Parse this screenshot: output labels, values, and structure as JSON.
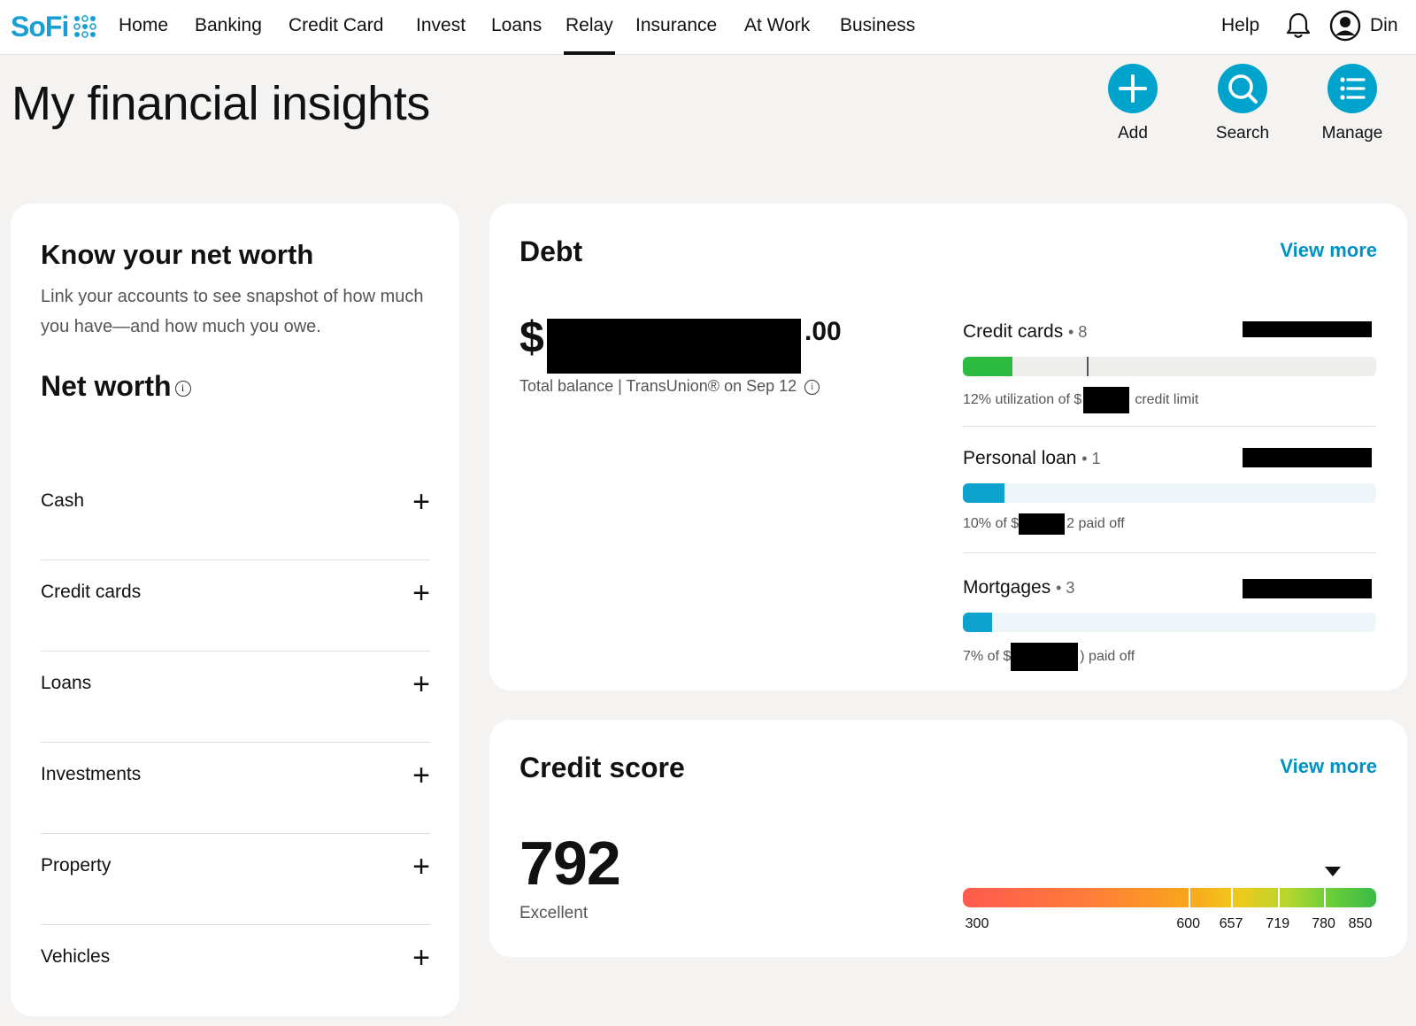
{
  "brand": {
    "name": "SoFi",
    "accent": "#1a9fd4",
    "action_color": "#00a3cc"
  },
  "nav": {
    "items": [
      {
        "label": "Home"
      },
      {
        "label": "Banking"
      },
      {
        "label": "Credit Card"
      },
      {
        "label": "Invest"
      },
      {
        "label": "Loans"
      },
      {
        "label": "Relay",
        "active": true
      },
      {
        "label": "Insurance"
      },
      {
        "label": "At Work"
      },
      {
        "label": "Business"
      }
    ],
    "help": "Help",
    "user": "Din",
    "icons": {
      "notifications": "bell-icon",
      "profile": "user-circle-icon"
    }
  },
  "page": {
    "title": "My financial insights"
  },
  "actions": [
    {
      "label": "Add",
      "icon": "plus-icon"
    },
    {
      "label": "Search",
      "icon": "search-icon"
    },
    {
      "label": "Manage",
      "icon": "list-icon"
    }
  ],
  "net_worth": {
    "title": "Know your net worth",
    "description": "Link your accounts to see snapshot of how much you have—and how much you owe.",
    "subtitle": "Net worth",
    "rows": [
      {
        "label": "Cash"
      },
      {
        "label": "Credit cards"
      },
      {
        "label": "Loans"
      },
      {
        "label": "Investments"
      },
      {
        "label": "Property"
      },
      {
        "label": "Vehicles"
      }
    ]
  },
  "debt": {
    "title": "Debt",
    "view_more": "View more",
    "dollar_sign": "$",
    "cents": ".00",
    "caption": "Total balance | TransUnion® on Sep 12",
    "items": [
      {
        "label": "Credit cards",
        "count": "• 8",
        "progress": 0.12,
        "bar_color": "#2dbb3f",
        "track_color": "#eeeeec",
        "caption_prefix": "12% utilization of $",
        "caption_suffix": "credit limit"
      },
      {
        "label": "Personal loan",
        "count": "• 1",
        "progress": 0.1,
        "bar_color": "#0ea3cf",
        "track_color": "#eef6fa",
        "caption_prefix": "10% of $",
        "caption_suffix": "2 paid off"
      },
      {
        "label": "Mortgages",
        "count": "• 3",
        "progress": 0.07,
        "bar_color": "#0ea3cf",
        "track_color": "#eef6fa",
        "caption_prefix": "7% of $",
        "caption_suffix": ") paid off"
      }
    ]
  },
  "credit": {
    "title": "Credit score",
    "view_more": "View more",
    "score": "792",
    "rating": "Excellent",
    "scale_min": 300,
    "scale_max": 850,
    "current_value": 792,
    "ticks": [
      "300",
      "600",
      "657",
      "719",
      "780",
      "850"
    ]
  }
}
